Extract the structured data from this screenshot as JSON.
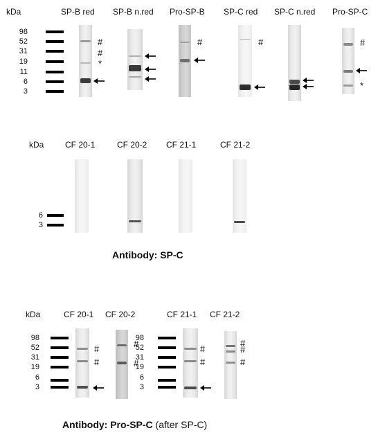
{
  "panel_top": {
    "kda_label": "kDa",
    "marker_values": [
      "98",
      "52",
      "31",
      "19",
      "11",
      "6",
      "3"
    ],
    "lanes": [
      "SP-B red",
      "SP-B n.red",
      "Pro-SP-B",
      "SP-C red",
      "SP-C n.red",
      "Pro-SP-C"
    ]
  },
  "panel_middle": {
    "kda_label": "kDa",
    "marker_values": [
      "6",
      "3"
    ],
    "lanes": [
      "CF 20-1",
      "CF 20-2",
      "CF 21-1",
      "CF 21-2"
    ],
    "caption": "Antibody: SP-C"
  },
  "panel_bottom": {
    "kda_label": "kDa",
    "marker_values_left": [
      "98",
      "52",
      "31",
      "19",
      "6",
      "3"
    ],
    "marker_values_right": [
      "98",
      "52",
      "31",
      "19",
      "6",
      "3"
    ],
    "lanes": [
      "CF 20-1",
      "CF 20-2",
      "CF 21-1",
      "CF 21-2"
    ],
    "caption_bold": "Antibody: Pro-SP-C",
    "caption_rest": " (after SP-C)"
  },
  "symbols": {
    "hash": "#",
    "star": "*"
  }
}
